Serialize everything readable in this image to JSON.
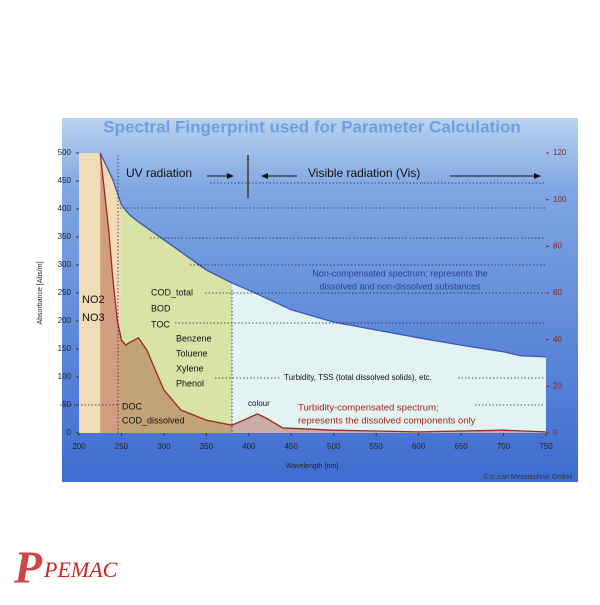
{
  "chart_data": {
    "type": "area",
    "title": "Spectral Fingerprint used for Parameter Calculation",
    "x_label": "Wavelength [nm]",
    "y_label": "Absorbance [Abs/m]",
    "xlim": [
      200,
      750
    ],
    "xticks": [
      200,
      250,
      300,
      350,
      400,
      450,
      500,
      550,
      600,
      650,
      700,
      750
    ],
    "ylim": [
      0,
      500
    ],
    "yticks": [
      0,
      50,
      100,
      150,
      200,
      250,
      300,
      350,
      400,
      450,
      500
    ],
    "y2lim": [
      0,
      120
    ],
    "y2ticks": [
      0,
      20,
      40,
      60,
      80,
      100,
      120
    ],
    "regions": [
      {
        "from": 200,
        "to": 250,
        "color": "#f0dcb6"
      },
      {
        "from": 250,
        "to": 380,
        "color": "#d8e4a6"
      },
      {
        "from": 380,
        "to": 750,
        "color": "#e3f3f1"
      }
    ],
    "series": [
      {
        "color": "#3a56b8",
        "x": [
          225,
          240,
          250,
          260,
          270,
          300,
          350,
          380,
          400,
          450,
          500,
          550,
          600,
          650,
          700,
          720,
          750
        ],
        "values": [
          500,
          452,
          407,
          389,
          377,
          345,
          291,
          268,
          255,
          220,
          198,
          184,
          170,
          157,
          145,
          138,
          136
        ]
      },
      {
        "color": "#9a2a22",
        "x": [
          225,
          235,
          240,
          245,
          250,
          255,
          260,
          270,
          280,
          290,
          300,
          320,
          350,
          380,
          400,
          410,
          420,
          440,
          500,
          600,
          700,
          750
        ],
        "values": [
          500,
          362,
          273,
          202,
          166,
          157,
          162,
          170,
          148,
          112,
          77,
          41,
          23,
          14,
          27,
          34,
          27,
          9,
          5,
          2,
          5,
          2
        ]
      }
    ],
    "annotations": [
      "UV radiation",
      "Visible radiation (Vis)",
      "NO2",
      "NO3",
      "COD_total",
      "BOD",
      "TOC",
      "Benzene",
      "Toluene",
      "Xylene",
      "Phenol",
      "DOC",
      "COD_dissolved",
      "colour",
      "Turbidity, TSS (total dissolved solids), etc.",
      "Non-compensated spectrum; represents the",
      "dissolved and non-dissolved substances",
      "Turbidity-compensated spectrum;",
      "represents the dissolved components only",
      "© s::can Messtechnik GmbH"
    ],
    "logo": "PEMAC"
  }
}
